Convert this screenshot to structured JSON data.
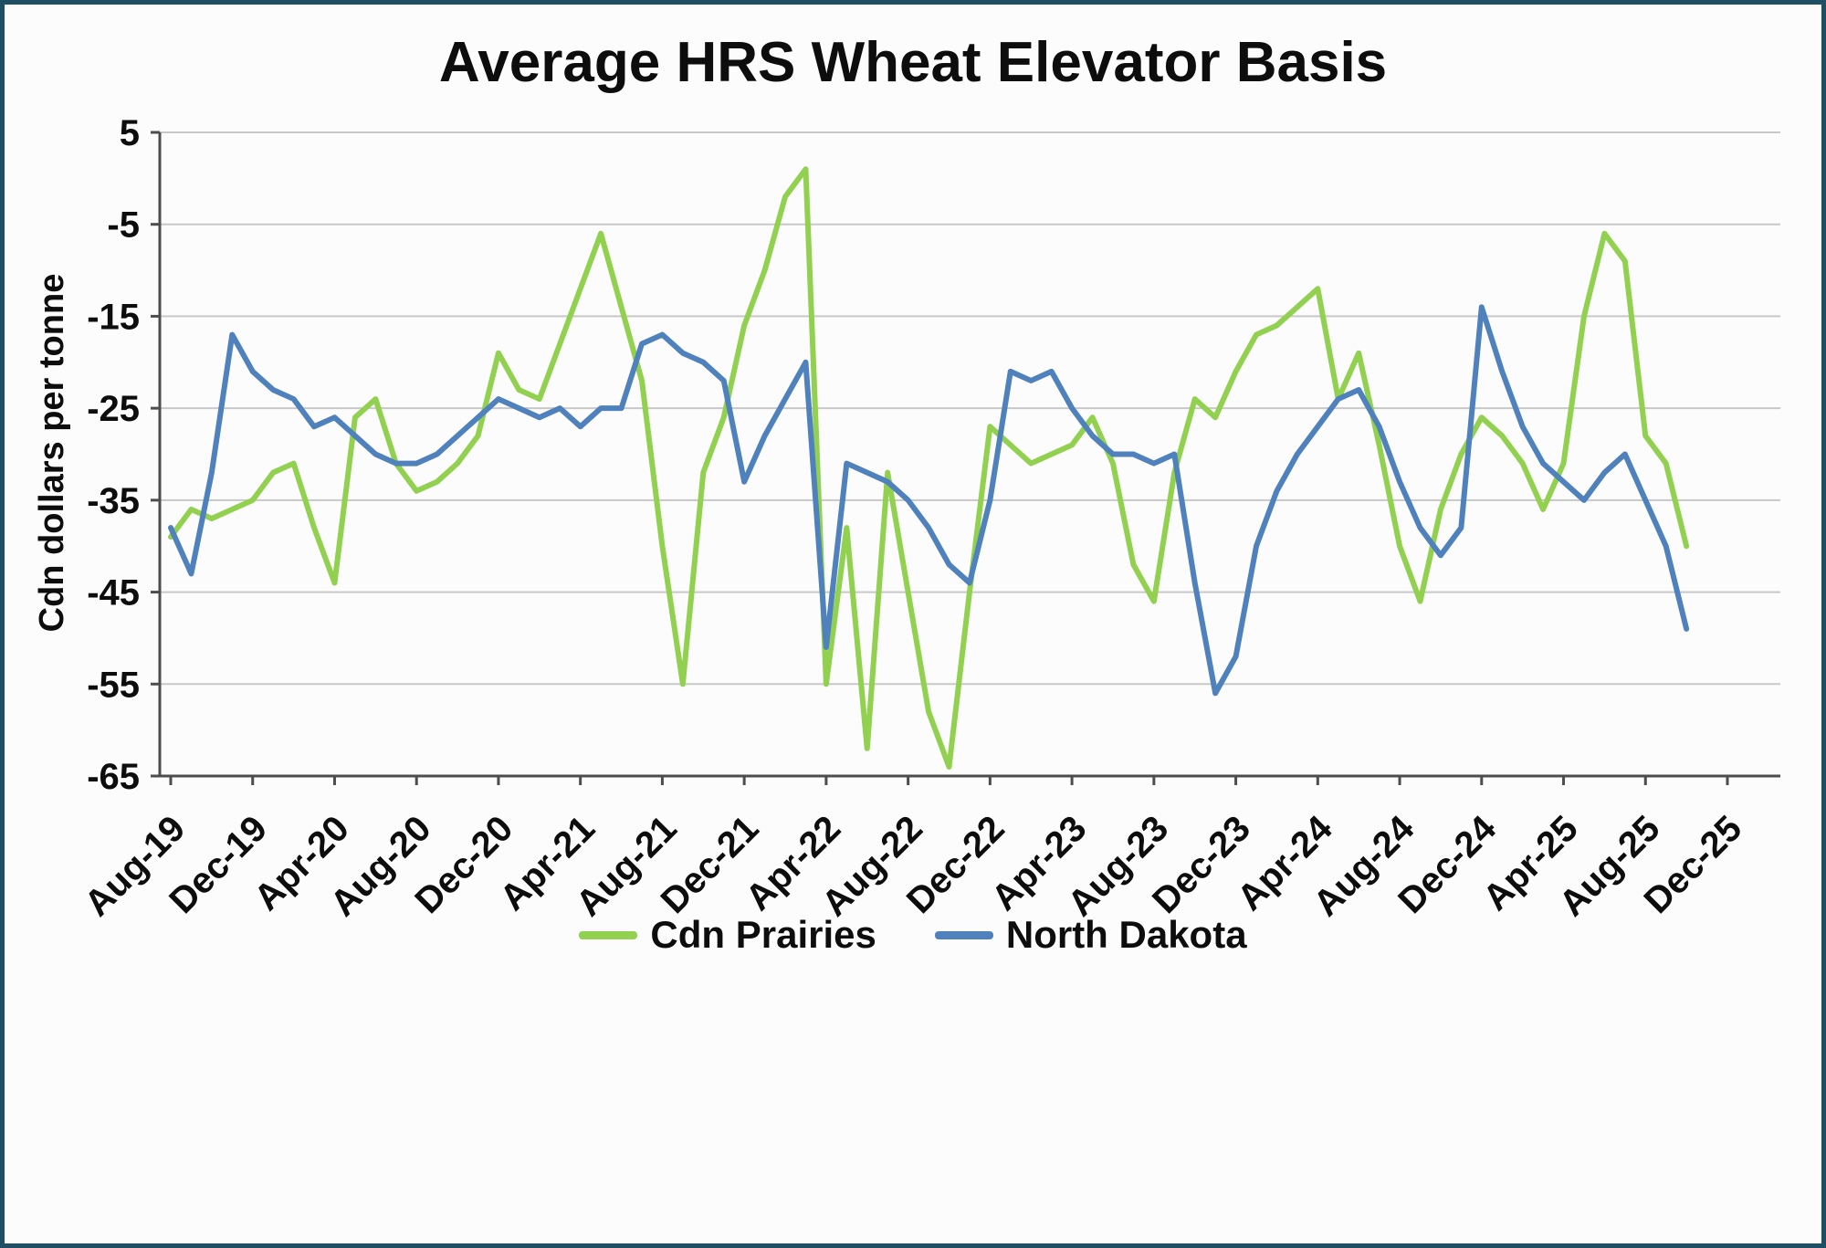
{
  "frame": {
    "border_color": "#1f4f63",
    "background": "#fcfcfc"
  },
  "chart_data": {
    "type": "line",
    "title": "Average HRS Wheat Elevator Basis",
    "xlabel": "",
    "ylabel": "Cdn dollars per tonne",
    "ylim": [
      -65,
      5
    ],
    "yticks": [
      5,
      -5,
      -15,
      -25,
      -35,
      -45,
      -55,
      -65
    ],
    "grid": true,
    "grid_color": "#c8c8c8",
    "axis_color": "#4d4d4d",
    "legend_position": "bottom",
    "xtick_labels": [
      "Aug-19",
      "Dec-19",
      "Apr-20",
      "Aug-20",
      "Dec-20",
      "Apr-21",
      "Aug-21",
      "Dec-21",
      "Apr-22",
      "Aug-22",
      "Dec-22",
      "Apr-23",
      "Aug-23",
      "Dec-23",
      "Apr-24",
      "Aug-24",
      "Dec-24",
      "Apr-25",
      "Aug-25",
      "Dec-25"
    ],
    "months_per_xtick": 4,
    "x_axis_total_months": 76,
    "x_months": [
      "Aug-19",
      "Sep-19",
      "Oct-19",
      "Nov-19",
      "Dec-19",
      "Jan-20",
      "Feb-20",
      "Mar-20",
      "Apr-20",
      "May-20",
      "Jun-20",
      "Jul-20",
      "Aug-20",
      "Sep-20",
      "Oct-20",
      "Nov-20",
      "Dec-20",
      "Jan-21",
      "Feb-21",
      "Mar-21",
      "Apr-21",
      "May-21",
      "Jun-21",
      "Jul-21",
      "Aug-21",
      "Sep-21",
      "Oct-21",
      "Nov-21",
      "Dec-21",
      "Jan-22",
      "Feb-22",
      "Mar-22",
      "Apr-22",
      "May-22",
      "Jun-22",
      "Jul-22",
      "Aug-22",
      "Sep-22",
      "Oct-22",
      "Nov-22",
      "Dec-22",
      "Jan-23",
      "Feb-23",
      "Mar-23",
      "Apr-23",
      "May-23",
      "Jun-23",
      "Jul-23",
      "Aug-23",
      "Sep-23",
      "Oct-23",
      "Nov-23",
      "Dec-23",
      "Jan-24",
      "Feb-24",
      "Mar-24",
      "Apr-24",
      "May-24",
      "Jun-24",
      "Jul-24",
      "Aug-24",
      "Sep-24",
      "Oct-24",
      "Nov-24",
      "Dec-24",
      "Jan-25",
      "Feb-25",
      "Mar-25",
      "Apr-25",
      "May-25",
      "Jun-25",
      "Jul-25",
      "Aug-25",
      "Sep-25",
      "Oct-25"
    ],
    "series": [
      {
        "name": "Cdn Prairies",
        "color": "#92d050",
        "values": [
          -39,
          -36,
          -37,
          -36,
          -35,
          -32,
          -31,
          -38,
          -44,
          -26,
          -24,
          -31,
          -34,
          -33,
          -31,
          -28,
          -19,
          -23,
          -24,
          -18,
          -12,
          -6,
          -14,
          -22,
          -40,
          -55,
          -32,
          -26,
          -16,
          -10,
          -2,
          1,
          -55,
          -38,
          -62,
          -32,
          -45,
          -58,
          -64,
          -45,
          -27,
          -29,
          -31,
          -30,
          -29,
          -26,
          -31,
          -42,
          -46,
          -32,
          -24,
          -26,
          -21,
          -17,
          -16,
          -14,
          -12,
          -24,
          -19,
          -29,
          -40,
          -46,
          -36,
          -30,
          -26,
          -28,
          -31,
          -36,
          -31,
          -15,
          -6,
          -9,
          -28,
          -31,
          -40
        ]
      },
      {
        "name": "North Dakota",
        "color": "#4f81bd",
        "values": [
          -38,
          -43,
          -32,
          -17,
          -21,
          -23,
          -24,
          -27,
          -26,
          -28,
          -30,
          -31,
          -31,
          -30,
          -28,
          -26,
          -24,
          -25,
          -26,
          -25,
          -27,
          -25,
          -25,
          -18,
          -17,
          -19,
          -20,
          -22,
          -33,
          -28,
          -24,
          -20,
          -51,
          -31,
          -32,
          -33,
          -35,
          -38,
          -42,
          -44,
          -35,
          -21,
          -22,
          -21,
          -25,
          -28,
          -30,
          -30,
          -31,
          -30,
          -44,
          -56,
          -52,
          -40,
          -34,
          -30,
          -27,
          -24,
          -23,
          -27,
          -33,
          -38,
          -41,
          -38,
          -14,
          -21,
          -27,
          -31,
          -33,
          -35,
          -32,
          -30,
          -35,
          -40,
          -49
        ]
      }
    ]
  }
}
